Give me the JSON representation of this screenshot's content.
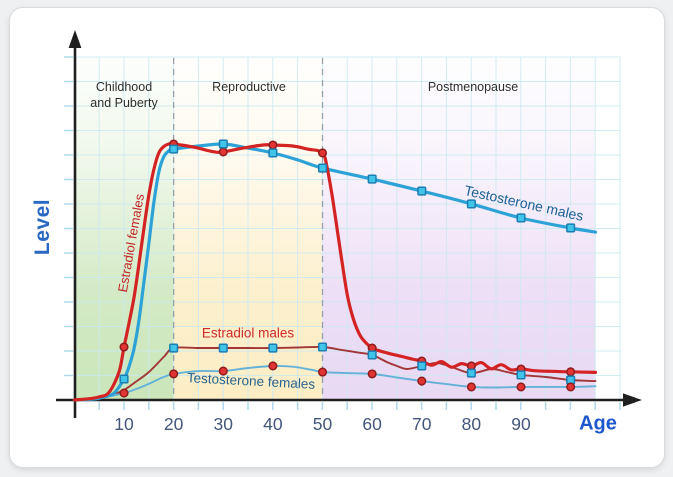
{
  "chart_data": {
    "type": "line",
    "title": "",
    "xlabel": "Age",
    "ylabel": "Level",
    "x_ticks": [
      10,
      20,
      30,
      40,
      50,
      60,
      70,
      80,
      90
    ],
    "x_range": [
      0,
      110
    ],
    "y_range_units": "relative hormone level, 0-100 (unlabeled axis)",
    "grid": true,
    "legend_position": "labels drawn next to curves",
    "regions": [
      {
        "name": "childhood",
        "label_lines": [
          "Childhood",
          "and Puberty"
        ],
        "age_start": 0,
        "age_end": 20,
        "color": "#cbe6ba"
      },
      {
        "name": "reproductive",
        "label_lines": [
          "Reproductive"
        ],
        "age_start": 20,
        "age_end": 50,
        "color": "#fcedc4"
      },
      {
        "name": "postmenopause",
        "label_lines": [
          "Postmenopause"
        ],
        "age_start": 50,
        "age_end": 105,
        "color": "#e9d9f4"
      }
    ],
    "series": [
      {
        "key": "ef",
        "name": "Estradiol females",
        "color": "#d42323",
        "width": 3.2,
        "marker": "circle",
        "marker_fill": "#e33434",
        "marker_stroke": "#8e1c1c",
        "marker_ages": [
          10,
          20,
          30,
          40,
          50,
          60,
          70,
          80,
          90,
          100
        ],
        "points": [
          [
            0,
            0
          ],
          [
            3,
            0.5
          ],
          [
            5,
            1.2
          ],
          [
            7,
            3
          ],
          [
            9,
            11
          ],
          [
            10,
            20.7
          ],
          [
            11,
            30
          ],
          [
            12,
            40
          ],
          [
            13,
            53
          ],
          [
            14,
            67
          ],
          [
            15,
            80
          ],
          [
            16,
            90
          ],
          [
            17,
            96.5
          ],
          [
            18,
            99
          ],
          [
            19,
            100
          ],
          [
            20,
            100
          ],
          [
            24,
            98.8
          ],
          [
            28,
            97
          ],
          [
            30,
            96.9
          ],
          [
            34,
            98.4
          ],
          [
            38,
            99.6
          ],
          [
            40,
            99.6
          ],
          [
            44,
            99.2
          ],
          [
            47,
            98
          ],
          [
            50,
            96.5
          ],
          [
            51,
            90
          ],
          [
            52,
            79
          ],
          [
            53,
            66
          ],
          [
            54,
            53
          ],
          [
            55,
            41
          ],
          [
            56,
            33
          ],
          [
            57,
            27.5
          ],
          [
            58,
            24
          ],
          [
            60,
            20.3
          ],
          [
            63,
            18.4
          ],
          [
            66,
            17
          ],
          [
            68,
            16
          ],
          [
            70,
            15.2
          ],
          [
            72,
            13.6
          ],
          [
            74,
            15
          ],
          [
            76,
            12.8
          ],
          [
            78,
            14.2
          ],
          [
            80,
            13.3
          ],
          [
            82,
            14.6
          ],
          [
            84,
            12.2
          ],
          [
            86,
            13.8
          ],
          [
            88,
            11.8
          ],
          [
            90,
            12.1
          ],
          [
            93,
            11.4
          ],
          [
            96,
            11.2
          ],
          [
            100,
            11
          ],
          [
            105,
            10.8
          ]
        ]
      },
      {
        "key": "em",
        "name": "Estradiol males",
        "color": "#a03636",
        "width": 1.9,
        "marker": "square",
        "marker_fill": "#40c4e8",
        "marker_stroke": "#1b7db2",
        "marker_ages": [
          20,
          30,
          40,
          50,
          60,
          70,
          80,
          90,
          100
        ],
        "points": [
          [
            0,
            0
          ],
          [
            4,
            0.8
          ],
          [
            8,
            2.3
          ],
          [
            10,
            3.9
          ],
          [
            12,
            6.6
          ],
          [
            15,
            10.9
          ],
          [
            18,
            16.8
          ],
          [
            20,
            20.3
          ],
          [
            25,
            20.3
          ],
          [
            30,
            20.3
          ],
          [
            35,
            20.3
          ],
          [
            40,
            20.3
          ],
          [
            45,
            20.5
          ],
          [
            50,
            20.7
          ],
          [
            54,
            19.5
          ],
          [
            57,
            18.6
          ],
          [
            60,
            17.6
          ],
          [
            63,
            14.8
          ],
          [
            65,
            13.3
          ],
          [
            67,
            12.1
          ],
          [
            70,
            13.3
          ],
          [
            73,
            14.5
          ],
          [
            76,
            12.9
          ],
          [
            80,
            10.5
          ],
          [
            84,
            12.1
          ],
          [
            87,
            11
          ],
          [
            90,
            9.8
          ],
          [
            95,
            9
          ],
          [
            100,
            7.8
          ],
          [
            105,
            7.4
          ]
        ]
      },
      {
        "key": "tm",
        "name": "Testosterone males",
        "color": "#2da2d6",
        "width": 3.2,
        "marker": "square",
        "marker_fill": "#40c4e8",
        "marker_stroke": "#1b7db2",
        "marker_ages": [
          10,
          20,
          30,
          40,
          50,
          60,
          70,
          80,
          90,
          100
        ],
        "points": [
          [
            0,
            0
          ],
          [
            4,
            0.4
          ],
          [
            6,
            1.2
          ],
          [
            8,
            2.7
          ],
          [
            10,
            8.2
          ],
          [
            11,
            13
          ],
          [
            12,
            20
          ],
          [
            13,
            31
          ],
          [
            14,
            46
          ],
          [
            15,
            61
          ],
          [
            16,
            77
          ],
          [
            17,
            89
          ],
          [
            18,
            95
          ],
          [
            19,
            97.3
          ],
          [
            20,
            98
          ],
          [
            25,
            99.2
          ],
          [
            30,
            100
          ],
          [
            35,
            98.4
          ],
          [
            40,
            96.5
          ],
          [
            45,
            93.8
          ],
          [
            50,
            90.6
          ],
          [
            60,
            86.3
          ],
          [
            70,
            81.6
          ],
          [
            80,
            76.6
          ],
          [
            90,
            71.1
          ],
          [
            100,
            67.2
          ],
          [
            105,
            65.6
          ]
        ]
      },
      {
        "key": "tf",
        "name": "Testosterone females",
        "color": "#64b2d8",
        "width": 1.9,
        "marker": "circle",
        "marker_fill": "#e33434",
        "marker_stroke": "#8e1c1c",
        "marker_ages": [
          10,
          20,
          30,
          40,
          50,
          60,
          70,
          80,
          90,
          100
        ],
        "points": [
          [
            0,
            0
          ],
          [
            5,
            0.8
          ],
          [
            10,
            2.7
          ],
          [
            13,
            4.7
          ],
          [
            15,
            6.3
          ],
          [
            18,
            9
          ],
          [
            20,
            10.2
          ],
          [
            25,
            11.3
          ],
          [
            30,
            11.3
          ],
          [
            35,
            12.5
          ],
          [
            40,
            13.3
          ],
          [
            44,
            13
          ],
          [
            48,
            11.7
          ],
          [
            50,
            10.9
          ],
          [
            55,
            10.5
          ],
          [
            60,
            10.2
          ],
          [
            65,
            8.8
          ],
          [
            70,
            7.4
          ],
          [
            75,
            6.2
          ],
          [
            80,
            5.1
          ],
          [
            85,
            4.9
          ],
          [
            90,
            5.1
          ],
          [
            95,
            5.1
          ],
          [
            100,
            5.1
          ],
          [
            105,
            5.4
          ]
        ]
      }
    ],
    "colors": {
      "grid": "#cbe9f2",
      "axis": "#1f1f1f",
      "minor_tick": "#a9d9ea",
      "boundary_dash": "#9aa0a8",
      "tick_label": "#44567a",
      "x_axis_title": "#1e57cd",
      "y_axis_title": "#2a68c2"
    }
  }
}
